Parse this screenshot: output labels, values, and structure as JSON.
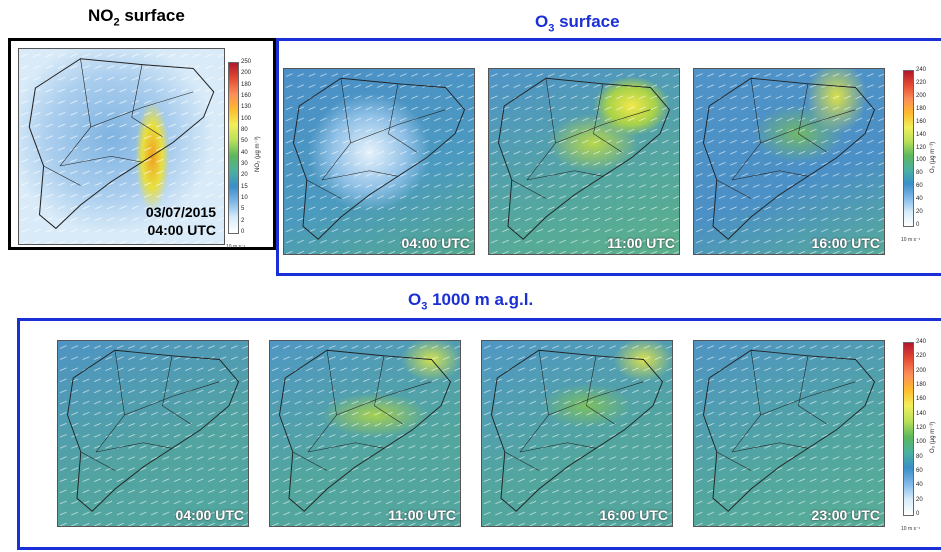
{
  "no2_surface": {
    "title": {
      "main": "NO",
      "sub": "2",
      "rest": " surface"
    },
    "date": "03/07/2015",
    "time": "04:00 UTC",
    "colorbar": {
      "label": "NO₂ (µg m⁻³)",
      "ticks": [
        250,
        200,
        180,
        160,
        130,
        100,
        80,
        50,
        40,
        30,
        20,
        15,
        10,
        5,
        2,
        0
      ]
    },
    "wind_scale": "10 m s⁻¹"
  },
  "o3_surface": {
    "title": {
      "main": "O",
      "sub": "3",
      "rest": " surface"
    },
    "maps": [
      {
        "time": "04:00 UTC"
      },
      {
        "time": "11:00 UTC"
      },
      {
        "time": "16:00 UTC"
      }
    ],
    "colorbar": {
      "label": "O₃ (µg m⁻³)",
      "ticks": [
        240,
        220,
        200,
        180,
        160,
        140,
        120,
        100,
        80,
        60,
        40,
        20,
        0
      ]
    },
    "wind_scale": "10 m s⁻¹"
  },
  "o3_1000m": {
    "title": {
      "main": "O",
      "sub": "3",
      "rest": " 1000 m a.g.l."
    },
    "maps": [
      {
        "time": "04:00 UTC"
      },
      {
        "time": "11:00 UTC"
      },
      {
        "time": "16:00 UTC"
      },
      {
        "time": "23:00 UTC"
      }
    ],
    "colorbar": {
      "label": "O₃ (µg m⁻³)",
      "ticks": [
        240,
        220,
        200,
        180,
        160,
        140,
        120,
        100,
        80,
        60,
        40,
        20,
        0
      ]
    },
    "wind_scale": "10 m s⁻¹"
  }
}
